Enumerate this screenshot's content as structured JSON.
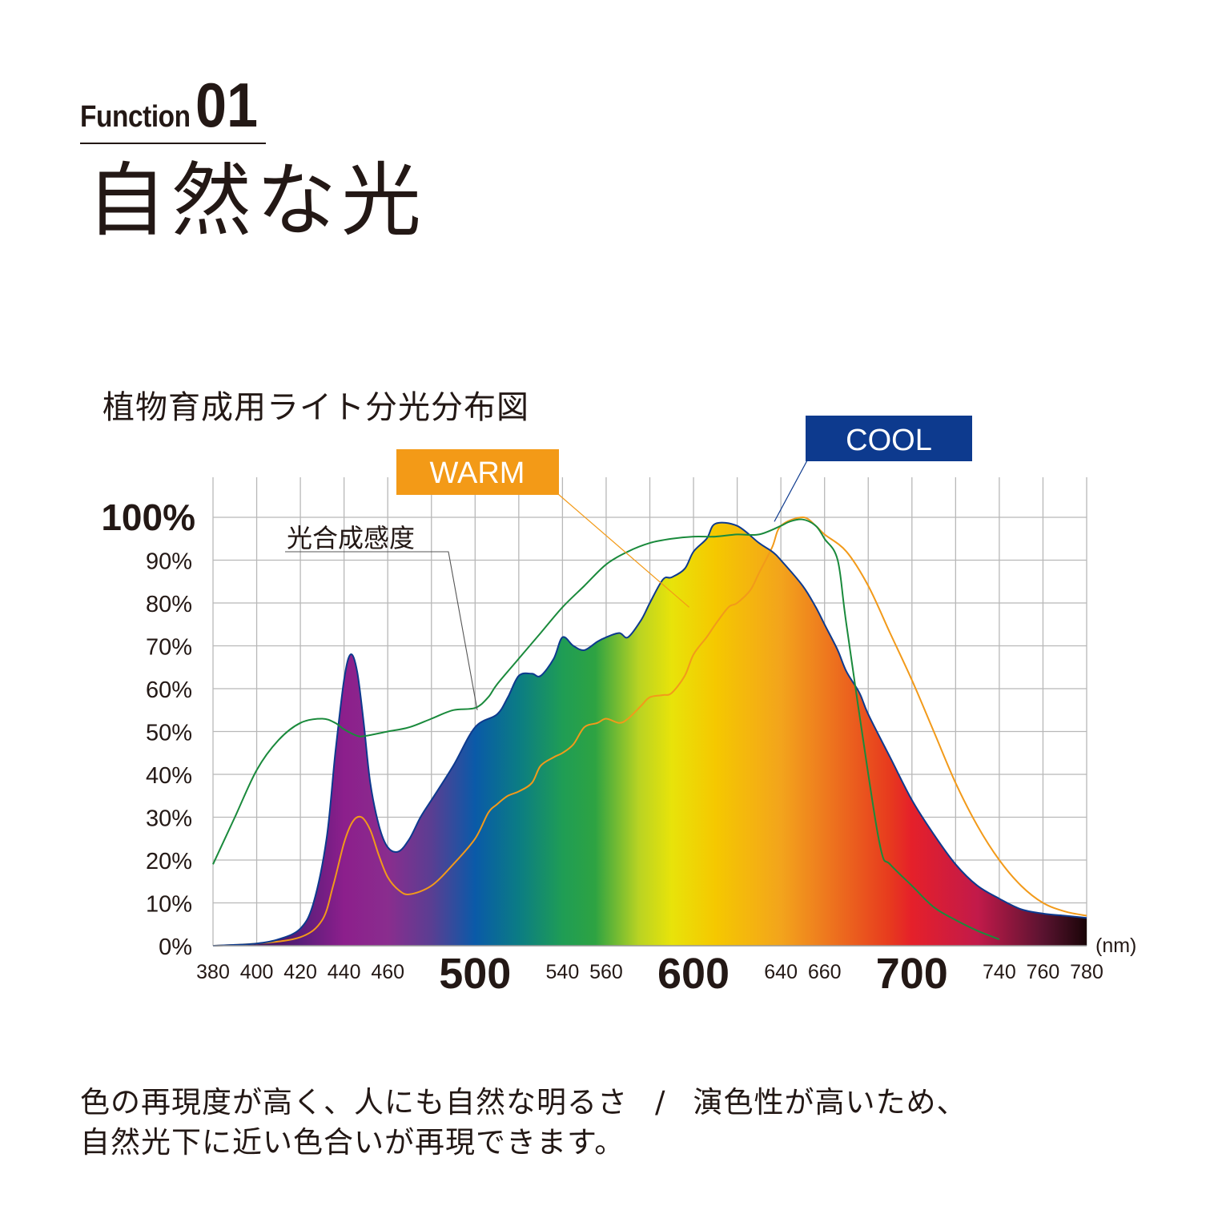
{
  "header": {
    "function_word": "Function",
    "function_number": "01",
    "title": "自然な光"
  },
  "chart_title": "植物育成用ライト分光分布図",
  "description": {
    "line1_part1": "色の再現度が高く、人にも自然な明るさ",
    "separator": "/",
    "line1_part2": "演色性が高いため、",
    "line2": "自然光下に近い色合いが再現できます。"
  },
  "chart_data": {
    "type": "area",
    "x_unit": "(nm)",
    "xlim": [
      380,
      780
    ],
    "ylim": [
      0,
      100
    ],
    "y_ticks": [
      {
        "value": 0,
        "label": "0%"
      },
      {
        "value": 10,
        "label": "10%"
      },
      {
        "value": 20,
        "label": "20%"
      },
      {
        "value": 30,
        "label": "30%"
      },
      {
        "value": 40,
        "label": "40%"
      },
      {
        "value": 50,
        "label": "50%"
      },
      {
        "value": 60,
        "label": "60%"
      },
      {
        "value": 70,
        "label": "70%"
      },
      {
        "value": 80,
        "label": "80%"
      },
      {
        "value": 90,
        "label": "90%"
      },
      {
        "value": 100,
        "label": "100%",
        "emphasis": true
      }
    ],
    "x_ticks": [
      {
        "value": 380,
        "label": "380"
      },
      {
        "value": 400,
        "label": "400"
      },
      {
        "value": 420,
        "label": "420"
      },
      {
        "value": 440,
        "label": "440"
      },
      {
        "value": 460,
        "label": "460"
      },
      {
        "value": 500,
        "label": "500",
        "emphasis": true
      },
      {
        "value": 540,
        "label": "540"
      },
      {
        "value": 560,
        "label": "560"
      },
      {
        "value": 600,
        "label": "600",
        "emphasis": true
      },
      {
        "value": 640,
        "label": "640"
      },
      {
        "value": 660,
        "label": "660"
      },
      {
        "value": 700,
        "label": "700",
        "emphasis": true
      },
      {
        "value": 740,
        "label": "740"
      },
      {
        "value": 760,
        "label": "760"
      },
      {
        "value": 780,
        "label": "780"
      }
    ],
    "grid": true,
    "series": [
      {
        "name": "COOL",
        "color": "#0d3a8e",
        "filled": true,
        "x": [
          380,
          390,
          400,
          410,
          420,
          426,
          432,
          436,
          440,
          443,
          446,
          449,
          452,
          456,
          460,
          465,
          470,
          475,
          480,
          490,
          500,
          510,
          515,
          520,
          526,
          530,
          536,
          540,
          545,
          550,
          556,
          560,
          566,
          570,
          576,
          580,
          586,
          590,
          596,
          600,
          606,
          610,
          620,
          630,
          636,
          640,
          650,
          656,
          660,
          666,
          670,
          676,
          680,
          690,
          700,
          710,
          720,
          730,
          740,
          750,
          760,
          770,
          780
        ],
        "y": [
          0,
          0.2,
          0.5,
          1.5,
          4,
          10,
          25,
          45,
          62,
          68,
          64,
          52,
          38,
          28,
          23,
          22,
          25,
          30,
          34,
          42,
          51,
          54,
          58,
          63,
          63.5,
          63,
          67,
          72,
          70,
          69,
          71,
          72,
          73,
          72,
          76,
          80,
          85.5,
          86,
          88,
          92,
          95,
          98.5,
          98,
          94,
          92,
          90,
          84,
          79,
          75,
          69,
          64,
          59,
          54,
          44,
          34,
          26,
          19,
          14,
          11,
          8.5,
          7.5,
          7,
          6.5
        ]
      },
      {
        "name": "WARM",
        "color": "#f29a1a",
        "x": [
          380,
          400,
          420,
          430,
          435,
          440,
          444,
          448,
          452,
          456,
          460,
          465,
          470,
          480,
          490,
          500,
          506,
          510,
          515,
          520,
          526,
          530,
          536,
          540,
          545,
          550,
          556,
          560,
          566,
          570,
          576,
          580,
          586,
          590,
          596,
          600,
          606,
          610,
          616,
          620,
          626,
          630,
          636,
          640,
          650,
          656,
          660,
          670,
          680,
          690,
          700,
          710,
          720,
          730,
          740,
          750,
          760,
          770,
          780
        ],
        "y": [
          0,
          0.5,
          2,
          6,
          14,
          24,
          29,
          30,
          27,
          21,
          16,
          13,
          12,
          14,
          19,
          25,
          31,
          33,
          35,
          36,
          38,
          42,
          44,
          45,
          47,
          51,
          52,
          53,
          52,
          53,
          56,
          58,
          58.5,
          59,
          63,
          68,
          72,
          75,
          79,
          80,
          83,
          87,
          93,
          98,
          100,
          98,
          96,
          92,
          84,
          73,
          62,
          50,
          38,
          28,
          20,
          14,
          10,
          8,
          7
        ]
      },
      {
        "name": "光合成感度",
        "color": "#1a8a3c",
        "x": [
          380,
          390,
          400,
          410,
          420,
          430,
          436,
          440,
          446,
          450,
          460,
          470,
          480,
          490,
          500,
          506,
          510,
          520,
          530,
          540,
          550,
          560,
          570,
          580,
          590,
          600,
          610,
          620,
          630,
          640,
          644,
          650,
          656,
          660,
          666,
          670,
          680,
          686,
          690,
          700,
          710,
          720,
          730,
          740
        ],
        "y": [
          19,
          30,
          41,
          48,
          52,
          53,
          52,
          50.5,
          49,
          49,
          50,
          51,
          53,
          55,
          55.5,
          58,
          61,
          67,
          73,
          79,
          84,
          89,
          92,
          94,
          95,
          95.5,
          95.5,
          96,
          96,
          98,
          99,
          99.5,
          98,
          95,
          90,
          75,
          40,
          22,
          19,
          14,
          9,
          6,
          3.5,
          1.5
        ]
      }
    ],
    "labels": [
      {
        "text": "COOL",
        "bg": "#0d3a8e",
        "fg": "#ffffff",
        "points_to": [
          637,
          99
        ]
      },
      {
        "text": "WARM",
        "bg": "#f39a17",
        "fg": "#ffffff",
        "points_to": [
          598,
          79
        ]
      },
      {
        "text": "光合成感度",
        "points_to": [
          501,
          55
        ]
      }
    ],
    "spectrum_colors": [
      {
        "nm": 380,
        "color": "#2a0a3a"
      },
      {
        "nm": 420,
        "color": "#5a1d7a"
      },
      {
        "nm": 440,
        "color": "#8c1f8c"
      },
      {
        "nm": 460,
        "color": "#8a2d8e"
      },
      {
        "nm": 480,
        "color": "#5a3e92"
      },
      {
        "nm": 500,
        "color": "#0a5aa8"
      },
      {
        "nm": 520,
        "color": "#0b7c84"
      },
      {
        "nm": 540,
        "color": "#1f9d55"
      },
      {
        "nm": 555,
        "color": "#2ea342"
      },
      {
        "nm": 575,
        "color": "#b9d323"
      },
      {
        "nm": 590,
        "color": "#e8e30a"
      },
      {
        "nm": 610,
        "color": "#f5c800"
      },
      {
        "nm": 640,
        "color": "#f3a41c"
      },
      {
        "nm": 660,
        "color": "#ee7a1e"
      },
      {
        "nm": 690,
        "color": "#e73a1e"
      },
      {
        "nm": 700,
        "color": "#e5202a"
      },
      {
        "nm": 730,
        "color": "#c21a4a"
      },
      {
        "nm": 760,
        "color": "#5a1330"
      },
      {
        "nm": 780,
        "color": "#1a0508"
      }
    ]
  }
}
